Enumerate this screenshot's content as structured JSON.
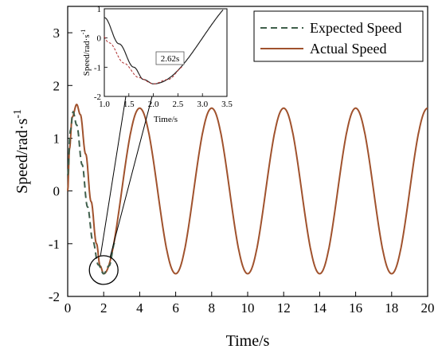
{
  "chart_data": [
    {
      "type": "line",
      "role": "main",
      "xlabel": "Time/s",
      "ylabel": "Speed/rad·s",
      "ylabel_sup": "-1",
      "xlim": [
        0,
        20
      ],
      "ylim": [
        -2,
        3.5
      ],
      "xticks": [
        0,
        2,
        4,
        6,
        8,
        10,
        12,
        14,
        16,
        18,
        20
      ],
      "yticks": [
        -2,
        -1,
        0,
        1,
        2,
        3
      ],
      "legend_position": "top-right",
      "series": [
        {
          "name": "Expected Speed",
          "style": "dashed",
          "color": "#3f5f4b",
          "points": [
            [
              0,
              0.3
            ],
            [
              0.15,
              1.15
            ],
            [
              0.3,
              1.5
            ],
            [
              0.5,
              1.25
            ],
            [
              0.8,
              0.5
            ],
            [
              1.1,
              -0.3
            ],
            [
              1.4,
              -0.95
            ],
            [
              1.7,
              -1.4
            ],
            [
              2.0,
              -1.57
            ],
            [
              2.3,
              -1.42
            ],
            [
              2.62,
              -0.98
            ]
          ]
        },
        {
          "name": "Actual Speed",
          "style": "solid",
          "color": "#a0522d",
          "description_points": [
            [
              0,
              0
            ],
            [
              0.1,
              0.8
            ],
            [
              0.25,
              1.4
            ],
            [
              0.5,
              1.64
            ],
            [
              0.7,
              1.45
            ],
            [
              1.0,
              0.7
            ],
            [
              1.3,
              -0.2
            ],
            [
              1.6,
              -1.0
            ],
            [
              1.8,
              -1.42
            ],
            [
              2.0,
              -1.57
            ],
            [
              2.62,
              -0.98
            ],
            [
              4,
              1.57
            ],
            [
              6,
              -1.57
            ],
            [
              8,
              1.57
            ],
            [
              10,
              -1.57
            ],
            [
              12,
              1.57
            ],
            [
              14,
              -1.57
            ],
            [
              16,
              1.57
            ],
            [
              18,
              -1.57
            ],
            [
              20,
              1.57
            ]
          ],
          "amplitude": 1.57,
          "period": 4
        }
      ],
      "annotation": {
        "type": "zoom-circle",
        "center": [
          2,
          -1.5
        ]
      }
    },
    {
      "type": "line",
      "role": "inset",
      "xlabel": "Time/s",
      "ylabel": "Speed/rad·s",
      "ylabel_sup": "-1",
      "xlim": [
        1.0,
        3.5
      ],
      "ylim": [
        -2,
        1
      ],
      "xticks": [
        1.0,
        1.5,
        2.0,
        2.5,
        3.0,
        3.5
      ],
      "yticks": [
        -2,
        -1,
        0,
        1
      ],
      "annotation_label": "2.62s",
      "annotation_x": 2.62
    }
  ]
}
